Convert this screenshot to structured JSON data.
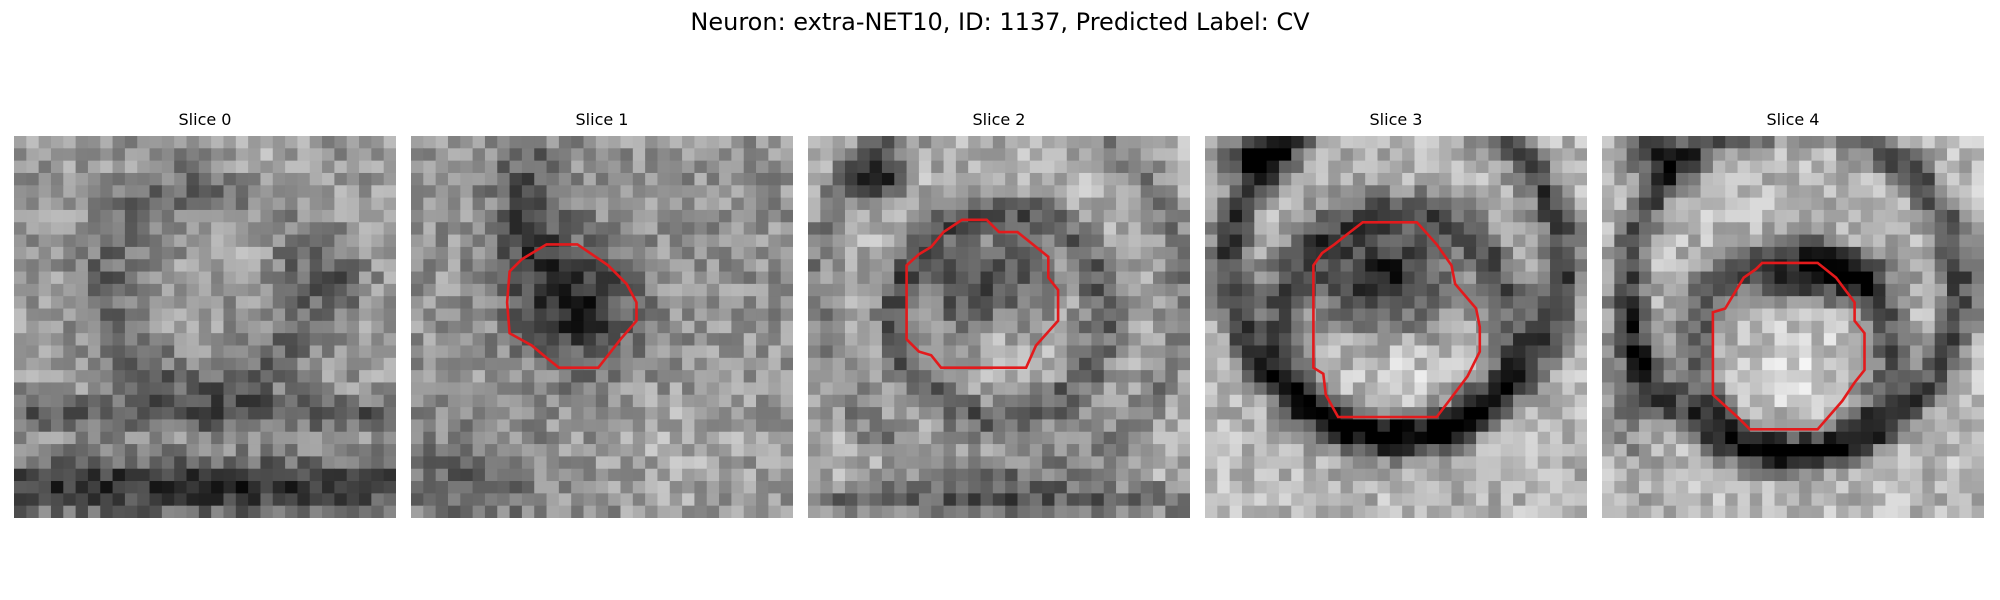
{
  "figure": {
    "title": "Neuron: extra-NET10, ID: 1137, Predicted Label: CV"
  },
  "panels": [
    {
      "title": "Slice 0",
      "has_contour": false
    },
    {
      "title": "Slice 1",
      "has_contour": true
    },
    {
      "title": "Slice 2",
      "has_contour": true
    },
    {
      "title": "Slice 3",
      "has_contour": true
    },
    {
      "title": "Slice 4",
      "has_contour": true
    }
  ],
  "colors": {
    "contour": "#e31a1c",
    "colormap": "grayscale"
  }
}
